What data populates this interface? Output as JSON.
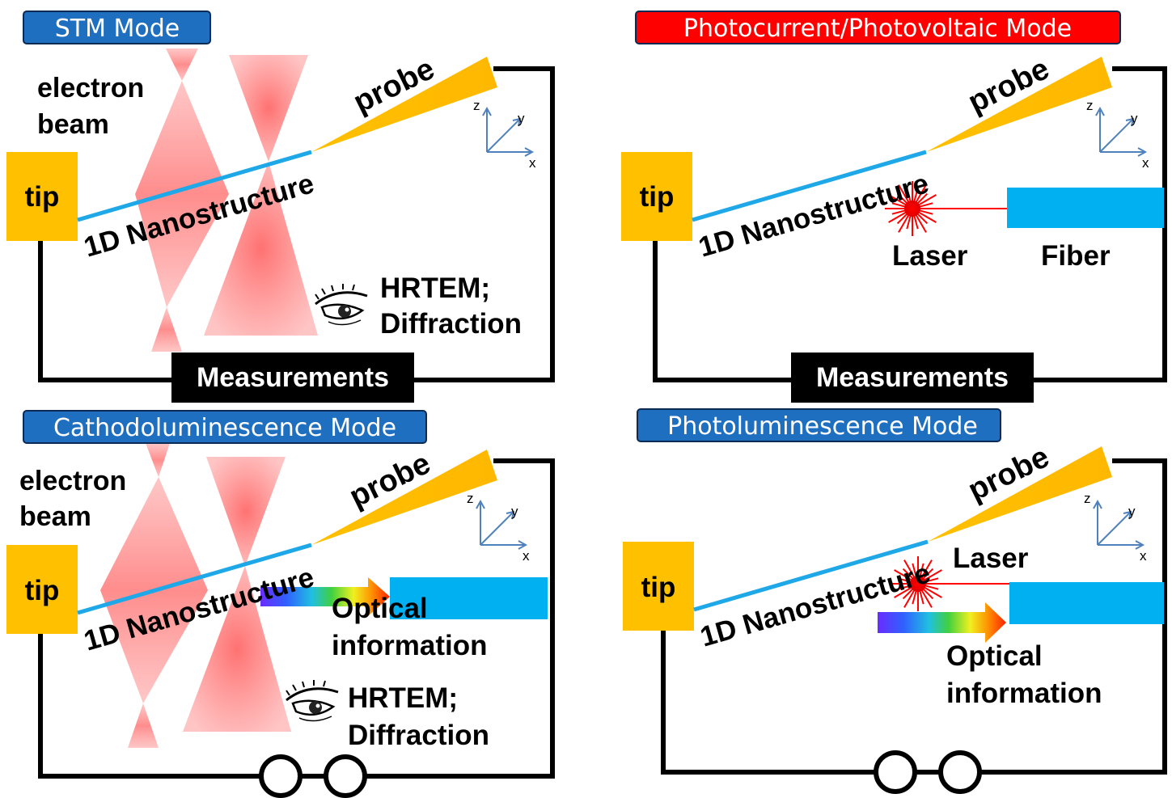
{
  "panels": {
    "stm": {
      "mode": "STM Mode",
      "electron_beam": [
        "electron",
        "beam"
      ],
      "tip": "tip",
      "probe": "probe",
      "nanostructure": "1D Nanostructure",
      "hrtem": [
        "HRTEM;",
        "Diffraction"
      ],
      "measurements": "Measurements",
      "axes": {
        "z": "z",
        "y": "y",
        "x": "x"
      }
    },
    "photocurrent": {
      "mode": "Photocurrent/Photovoltaic Mode",
      "tip": "tip",
      "probe": "probe",
      "nanostructure": "1D Nanostructure",
      "laser": "Laser",
      "fiber": "Fiber",
      "measurements": "Measurements",
      "axes": {
        "z": "z",
        "y": "y",
        "x": "x"
      }
    },
    "cathodoluminescence": {
      "mode": "Cathodoluminescence Mode",
      "electron_beam": [
        "electron",
        "beam"
      ],
      "tip": "tip",
      "probe": "probe",
      "nanostructure": "1D Nanostructure",
      "optical": [
        "Optical",
        "information"
      ],
      "hrtem": [
        "HRTEM;",
        "Diffraction"
      ],
      "axes": {
        "z": "z",
        "y": "y",
        "x": "x"
      }
    },
    "photoluminescence": {
      "mode": "Photoluminescence Mode",
      "tip": "tip",
      "probe": "probe",
      "nanostructure": "1D Nanostructure",
      "laser": "Laser",
      "optical": [
        "Optical",
        "information"
      ],
      "axes": {
        "z": "z",
        "y": "y",
        "x": "x"
      }
    }
  },
  "colors": {
    "mode_blue": "#1f6fc0",
    "mode_red": "#ff0000",
    "tip_gold": "#ffc000",
    "nanowire": "#1ea8e8",
    "fiber": "#00b0f0",
    "beam_pink": "#f8b8b8",
    "laser_red": "#ff0000",
    "axis_blue": "#4f81bd"
  }
}
